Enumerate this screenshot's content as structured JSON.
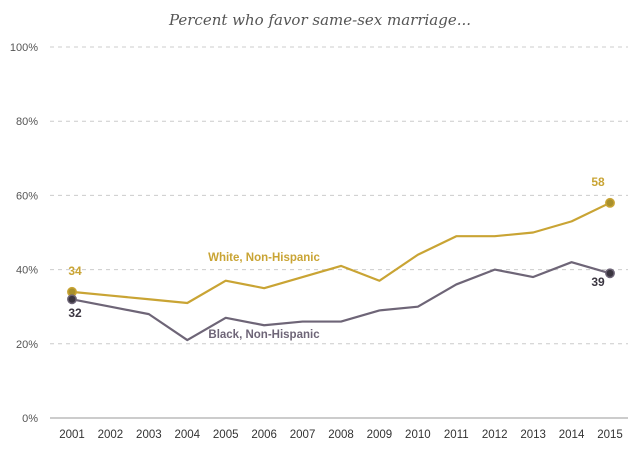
{
  "chart_data": {
    "type": "line",
    "title": "Percent who favor same-sex marriage...",
    "xlabel": "",
    "ylabel": "",
    "ylim": [
      0,
      100
    ],
    "y_ticks": [
      "0%",
      "20%",
      "40%",
      "60%",
      "80%",
      "100%"
    ],
    "y_tick_values": [
      0,
      20,
      40,
      60,
      80,
      100
    ],
    "grid": true,
    "categories": [
      "2001",
      "2002",
      "2003",
      "2004",
      "2005",
      "2006",
      "2007",
      "2008",
      "2009",
      "2010",
      "2011",
      "2012",
      "2013",
      "2014",
      "2015"
    ],
    "series": [
      {
        "name": "White, Non-Hispanic",
        "color": "#c9a434",
        "values": [
          34,
          33,
          32,
          31,
          37,
          35,
          38,
          41,
          37,
          44,
          49,
          49,
          50,
          53,
          58
        ]
      },
      {
        "name": "Black, Non-Hispanic",
        "color": "#6e6577",
        "values": [
          32,
          30,
          28,
          21,
          27,
          25,
          26,
          26,
          29,
          30,
          36,
          40,
          38,
          42,
          39
        ]
      }
    ],
    "endpoint_labels": {
      "white_start": "34",
      "white_end": "58",
      "black_start": "32",
      "black_end": "39"
    },
    "endpoint_colors": {
      "white_dot": "#a8902c",
      "black_dot": "#3a3540"
    }
  }
}
